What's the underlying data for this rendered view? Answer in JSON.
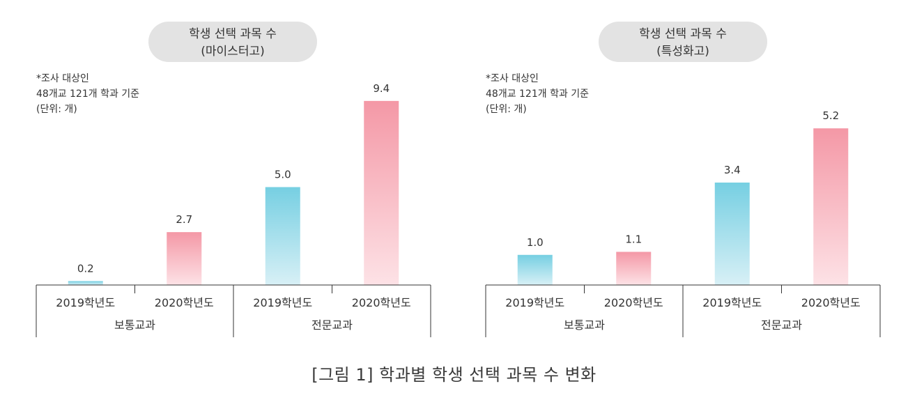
{
  "caption": "[그림 1] 학과별 학생 선택 과목 수 변화",
  "colors": {
    "cyan_top": "#76cfe2",
    "cyan_bottom": "#d8f0f6",
    "pink_top": "#f498a6",
    "pink_bottom": "#fde2e6",
    "title_bg": "#e3e3e3",
    "axis": "#333333",
    "text": "#333333"
  },
  "chart_data": [
    {
      "type": "bar",
      "title_line1": "학생 선택 과목 수",
      "title_line2": "(마이스터고)",
      "notes": [
        "*조사 대상인",
        "48개교 121개 학과 기준",
        "(단위: 개)"
      ],
      "categories": [
        "2019학년도",
        "2020학년도",
        "2019학년도",
        "2020학년도"
      ],
      "values": [
        0.2,
        2.7,
        5.0,
        9.4
      ],
      "value_labels": [
        "0.2",
        "2.7",
        "5.0",
        "9.4"
      ],
      "series_color": [
        "cyan",
        "pink",
        "cyan",
        "pink"
      ],
      "groups": [
        "보통교과",
        "전문교과"
      ],
      "ylim": [
        0,
        10
      ],
      "xlabel": "",
      "ylabel": ""
    },
    {
      "type": "bar",
      "title_line1": "학생 선택 과목 수",
      "title_line2": "(특성화고)",
      "notes": [
        "*조사 대상인",
        "48개교 121개 학과 기준",
        "(단위: 개)"
      ],
      "categories": [
        "2019학년도",
        "2020학년도",
        "2019학년도",
        "2020학년도"
      ],
      "values": [
        1.0,
        1.1,
        3.4,
        5.2
      ],
      "value_labels": [
        "1.0",
        "1.1",
        "3.4",
        "5.2"
      ],
      "series_color": [
        "cyan",
        "pink",
        "cyan",
        "pink"
      ],
      "groups": [
        "보통교과",
        "전문교과"
      ],
      "ylim": [
        0,
        6.5
      ],
      "xlabel": "",
      "ylabel": ""
    }
  ]
}
